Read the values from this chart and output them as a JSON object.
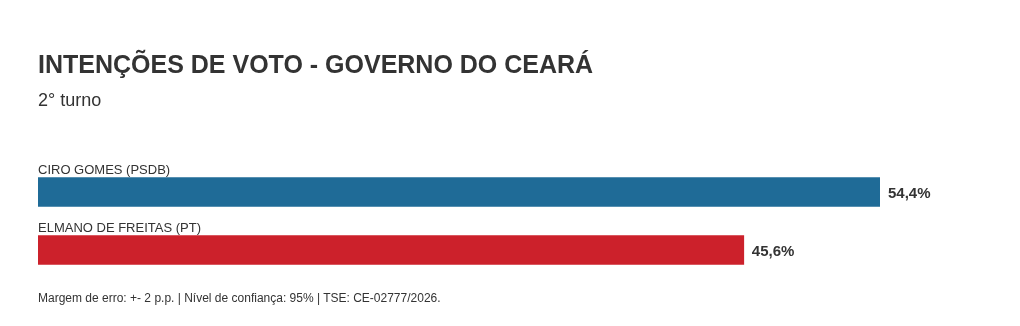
{
  "chart_data": {
    "type": "bar",
    "orientation": "horizontal",
    "title": "INTENÇÕES DE VOTO - GOVERNO DO CEARÁ",
    "subtitle": "2° turno",
    "categories": [
      "CIRO GOMES (PSDB)",
      "ELMANO DE FREITAS (PT)"
    ],
    "values": [
      54.4,
      45.6
    ],
    "colors": [
      "#1f6b97",
      "#cc212b"
    ],
    "value_labels": [
      "54,4%",
      "45,6%"
    ],
    "annotations": [
      "Margem de erro: +- 2 p.p. | Nível de confiança: 95% | TSE: CE-02777/2026."
    ]
  }
}
